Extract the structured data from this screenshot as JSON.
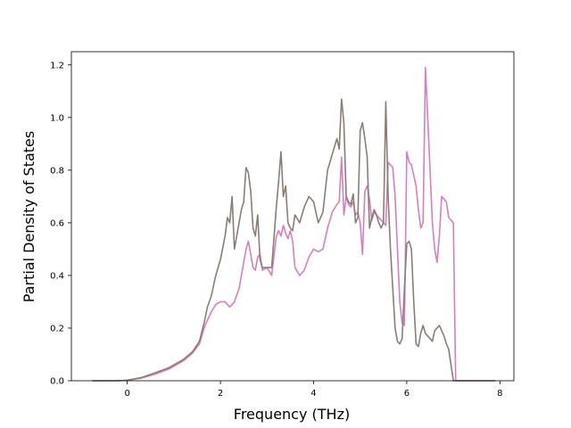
{
  "chart_data": {
    "type": "line",
    "title": "",
    "xlabel": "Frequency (THz)",
    "ylabel": "Partial Density of States",
    "xlim": [
      -1.2,
      8.3
    ],
    "ylim": [
      0.0,
      1.25
    ],
    "xticks": [
      0,
      2,
      4,
      6,
      8
    ],
    "yticks": [
      0.0,
      0.2,
      0.4,
      0.6,
      0.8,
      1.0,
      1.2
    ],
    "xtick_labels": [
      "0",
      "2",
      "4",
      "6",
      "8"
    ],
    "ytick_labels": [
      "0.0",
      "0.2",
      "0.4",
      "0.6",
      "0.8",
      "1.0",
      "1.2"
    ],
    "grid": false,
    "legend": "none",
    "series": [
      {
        "color": "#d57fbf",
        "x": [
          -0.75,
          -0.2,
          0.0,
          0.3,
          0.6,
          0.9,
          1.2,
          1.4,
          1.55,
          1.65,
          1.72,
          1.8,
          1.9,
          2.0,
          2.1,
          2.2,
          2.3,
          2.4,
          2.5,
          2.55,
          2.6,
          2.65,
          2.7,
          2.75,
          2.8,
          2.85,
          2.9,
          3.0,
          3.1,
          3.2,
          3.25,
          3.3,
          3.35,
          3.4,
          3.45,
          3.5,
          3.55,
          3.6,
          3.7,
          3.8,
          3.9,
          4.0,
          4.1,
          4.2,
          4.3,
          4.4,
          4.5,
          4.55,
          4.6,
          4.65,
          4.7,
          4.75,
          4.8,
          4.85,
          4.9,
          4.95,
          5.0,
          5.05,
          5.1,
          5.15,
          5.2,
          5.25,
          5.3,
          5.35,
          5.4,
          5.45,
          5.5,
          5.55,
          5.6,
          5.65,
          5.7,
          5.75,
          5.8,
          5.85,
          5.9,
          5.95,
          6.0,
          6.05,
          6.1,
          6.15,
          6.2,
          6.25,
          6.3,
          6.35,
          6.4,
          6.45,
          6.5,
          6.55,
          6.6,
          6.65,
          6.7,
          6.75,
          6.8,
          6.85,
          6.9,
          6.95,
          7.0,
          7.05,
          7.1,
          7.15,
          7.2,
          7.4,
          7.9
        ],
        "y": [
          0.0,
          0.0,
          0.002,
          0.01,
          0.025,
          0.045,
          0.075,
          0.105,
          0.14,
          0.2,
          0.23,
          0.26,
          0.29,
          0.3,
          0.3,
          0.28,
          0.3,
          0.35,
          0.45,
          0.5,
          0.53,
          0.48,
          0.43,
          0.42,
          0.47,
          0.48,
          0.42,
          0.43,
          0.4,
          0.55,
          0.57,
          0.55,
          0.59,
          0.56,
          0.54,
          0.57,
          0.53,
          0.43,
          0.4,
          0.42,
          0.47,
          0.5,
          0.49,
          0.5,
          0.58,
          0.64,
          0.67,
          0.68,
          0.85,
          0.63,
          0.7,
          0.67,
          0.66,
          0.68,
          0.63,
          0.64,
          0.6,
          0.48,
          0.72,
          0.74,
          0.69,
          0.61,
          0.64,
          0.63,
          0.62,
          0.61,
          0.6,
          0.59,
          0.83,
          0.82,
          0.81,
          0.7,
          0.5,
          0.3,
          0.22,
          0.21,
          0.87,
          0.83,
          0.82,
          0.78,
          0.74,
          0.65,
          0.58,
          0.6,
          1.19,
          1.0,
          0.8,
          0.6,
          0.5,
          0.45,
          0.55,
          0.7,
          0.69,
          0.68,
          0.62,
          0.61,
          0.6,
          0.0,
          0.0,
          0.0,
          0.0,
          0.0,
          0.0
        ]
      },
      {
        "color": "#8c7c74",
        "x": [
          -0.75,
          -0.2,
          0.0,
          0.3,
          0.6,
          0.9,
          1.2,
          1.4,
          1.55,
          1.65,
          1.72,
          1.8,
          1.9,
          2.0,
          2.1,
          2.15,
          2.2,
          2.25,
          2.3,
          2.35,
          2.4,
          2.45,
          2.5,
          2.55,
          2.6,
          2.65,
          2.7,
          2.75,
          2.8,
          2.85,
          2.9,
          3.0,
          3.1,
          3.2,
          3.25,
          3.3,
          3.35,
          3.4,
          3.45,
          3.5,
          3.55,
          3.6,
          3.7,
          3.8,
          3.9,
          4.0,
          4.1,
          4.2,
          4.3,
          4.4,
          4.5,
          4.55,
          4.6,
          4.65,
          4.7,
          4.75,
          4.8,
          4.85,
          4.9,
          4.95,
          5.0,
          5.05,
          5.1,
          5.15,
          5.2,
          5.25,
          5.3,
          5.35,
          5.4,
          5.45,
          5.5,
          5.55,
          5.6,
          5.65,
          5.7,
          5.75,
          5.8,
          5.85,
          5.9,
          5.95,
          6.0,
          6.05,
          6.1,
          6.15,
          6.2,
          6.25,
          6.3,
          6.35,
          6.4,
          6.45,
          6.5,
          6.55,
          6.6,
          6.65,
          6.7,
          6.75,
          6.8,
          6.85,
          6.9,
          6.95,
          7.0,
          7.05,
          7.1,
          7.15,
          7.2,
          7.4,
          7.9
        ],
        "y": [
          0.0,
          0.0,
          0.002,
          0.012,
          0.03,
          0.05,
          0.08,
          0.11,
          0.15,
          0.22,
          0.28,
          0.32,
          0.4,
          0.46,
          0.55,
          0.62,
          0.6,
          0.7,
          0.5,
          0.55,
          0.6,
          0.65,
          0.68,
          0.81,
          0.79,
          0.72,
          0.58,
          0.55,
          0.63,
          0.46,
          0.43,
          0.43,
          0.43,
          0.66,
          0.76,
          0.87,
          0.7,
          0.74,
          0.6,
          0.58,
          0.57,
          0.63,
          0.6,
          0.66,
          0.7,
          0.68,
          0.6,
          0.64,
          0.8,
          0.86,
          0.92,
          0.88,
          1.07,
          0.98,
          0.7,
          0.68,
          0.67,
          0.71,
          0.6,
          0.62,
          0.95,
          0.98,
          0.92,
          0.85,
          0.58,
          0.62,
          0.65,
          0.63,
          0.6,
          0.58,
          0.6,
          1.06,
          0.7,
          0.5,
          0.35,
          0.2,
          0.15,
          0.14,
          0.16,
          0.35,
          0.52,
          0.53,
          0.5,
          0.3,
          0.14,
          0.13,
          0.18,
          0.21,
          0.18,
          0.17,
          0.16,
          0.15,
          0.19,
          0.2,
          0.21,
          0.19,
          0.17,
          0.14,
          0.12,
          0.06,
          0.0,
          0.0,
          0.0,
          0.0,
          0.0,
          0.0,
          0.0
        ]
      }
    ]
  }
}
